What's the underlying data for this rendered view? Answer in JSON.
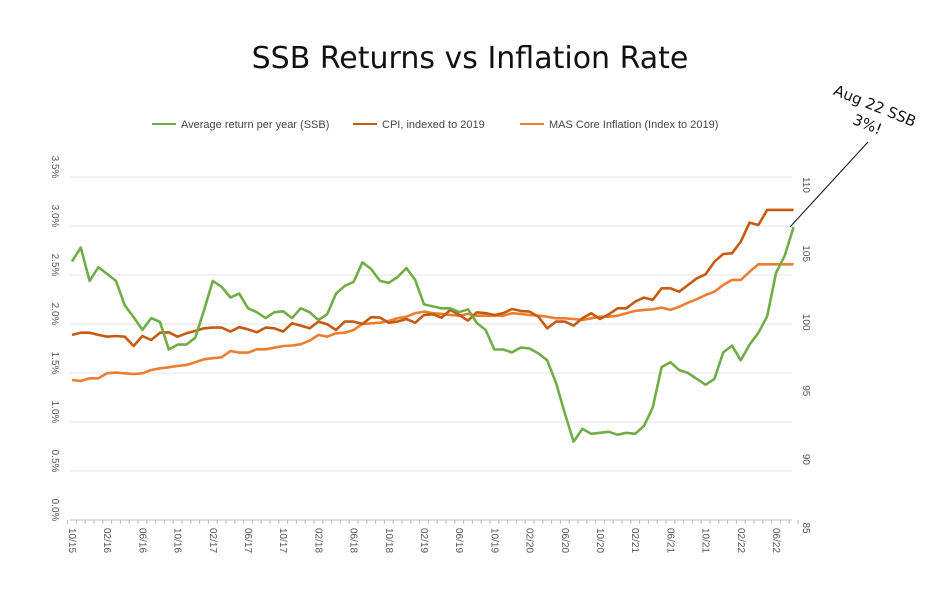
{
  "chart_data": {
    "type": "line",
    "title": "SSB Returns vs Inflation Rate",
    "x_tick_labels": [
      "10/15",
      "02/16",
      "06/16",
      "10/16",
      "02/17",
      "06/17",
      "10/17",
      "02/18",
      "06/18",
      "10/18",
      "02/19",
      "06/19",
      "10/19",
      "02/20",
      "06/20",
      "10/20",
      "02/21",
      "06/21",
      "10/21",
      "02/22",
      "06/22"
    ],
    "x_frequency": "monthly",
    "y_left": {
      "ticks": [
        "0.0%",
        "0.5%",
        "1.0%",
        "1.5%",
        "2.0%",
        "2.5%",
        "3.0%",
        "3.5%"
      ],
      "range": [
        0,
        3.5
      ]
    },
    "y_right": {
      "ticks": [
        "85",
        "90",
        "95",
        "100",
        "105",
        "110"
      ],
      "range": [
        85,
        110
      ]
    },
    "grid": true,
    "legend_position": "top",
    "series": [
      {
        "name": "Average return per year (SSB)",
        "axis": "left",
        "unit": "%",
        "color": "#70AD47",
        "values": [
          2.64,
          2.78,
          2.44,
          2.58,
          2.51,
          2.44,
          2.19,
          2.07,
          1.94,
          2.06,
          2.02,
          1.74,
          1.79,
          1.79,
          1.86,
          2.14,
          2.44,
          2.38,
          2.27,
          2.31,
          2.16,
          2.12,
          2.06,
          2.12,
          2.13,
          2.06,
          2.16,
          2.12,
          2.04,
          2.1,
          2.31,
          2.39,
          2.43,
          2.63,
          2.56,
          2.44,
          2.42,
          2.48,
          2.57,
          2.45,
          2.2,
          2.18,
          2.16,
          2.16,
          2.12,
          2.15,
          2.01,
          1.94,
          1.74,
          1.74,
          1.71,
          1.76,
          1.75,
          1.7,
          1.63,
          1.4,
          1.09,
          0.8,
          0.93,
          0.88,
          0.89,
          0.9,
          0.87,
          0.89,
          0.88,
          0.96,
          1.15,
          1.56,
          1.61,
          1.53,
          1.5,
          1.44,
          1.38,
          1.44,
          1.71,
          1.78,
          1.63,
          1.79,
          1.91,
          2.08,
          2.52,
          2.7,
          2.99
        ]
      },
      {
        "name": "CPI, indexed to 2019",
        "axis": "right",
        "color": "#C55A11",
        "values": [
          98.49,
          98.65,
          98.65,
          98.49,
          98.36,
          98.41,
          98.36,
          97.68,
          98.41,
          98.12,
          98.65,
          98.68,
          98.36,
          98.61,
          98.78,
          98.97,
          99.02,
          99.02,
          98.73,
          99.05,
          98.9,
          98.68,
          99.02,
          98.97,
          98.73,
          99.34,
          99.17,
          98.97,
          99.46,
          99.27,
          98.85,
          99.46,
          99.46,
          99.29,
          99.78,
          99.75,
          99.38,
          99.46,
          99.65,
          99.38,
          99.94,
          99.99,
          99.75,
          100.31,
          99.94,
          99.53,
          100.14,
          100.07,
          99.94,
          100.07,
          100.38,
          100.24,
          100.19,
          99.82,
          98.97,
          99.46,
          99.46,
          99.17,
          99.7,
          100.07,
          99.65,
          99.99,
          100.43,
          100.43,
          100.92,
          101.21,
          101.04,
          101.89,
          101.89,
          101.64,
          102.13,
          102.62,
          102.91,
          103.83,
          104.39,
          104.44,
          105.29,
          106.68,
          106.5,
          107.6,
          107.6,
          107.6,
          107.6
        ]
      },
      {
        "name": "MAS Core Inflation (Index to 2019)",
        "axis": "right",
        "color": "#ED7D31",
        "values": [
          95.21,
          95.13,
          95.33,
          95.33,
          95.69,
          95.74,
          95.69,
          95.64,
          95.69,
          95.93,
          96.06,
          96.13,
          96.23,
          96.3,
          96.5,
          96.71,
          96.79,
          96.86,
          97.32,
          97.2,
          97.2,
          97.44,
          97.44,
          97.56,
          97.68,
          97.71,
          97.81,
          98.07,
          98.49,
          98.36,
          98.61,
          98.65,
          98.85,
          99.29,
          99.34,
          99.38,
          99.51,
          99.7,
          99.82,
          100.07,
          100.19,
          100.07,
          100.02,
          99.94,
          99.89,
          100.02,
          99.89,
          99.89,
          99.89,
          99.89,
          100.07,
          100.02,
          99.94,
          99.89,
          99.82,
          99.7,
          99.7,
          99.65,
          99.58,
          99.7,
          99.82,
          99.82,
          99.89,
          100.07,
          100.24,
          100.31,
          100.36,
          100.48,
          100.31,
          100.55,
          100.84,
          101.09,
          101.4,
          101.64,
          102.13,
          102.5,
          102.5,
          103.1,
          103.64,
          103.64,
          103.64,
          103.64,
          103.64
        ]
      }
    ],
    "annotation": {
      "line1": "Aug 22 SSB",
      "line2": "3%!"
    }
  }
}
